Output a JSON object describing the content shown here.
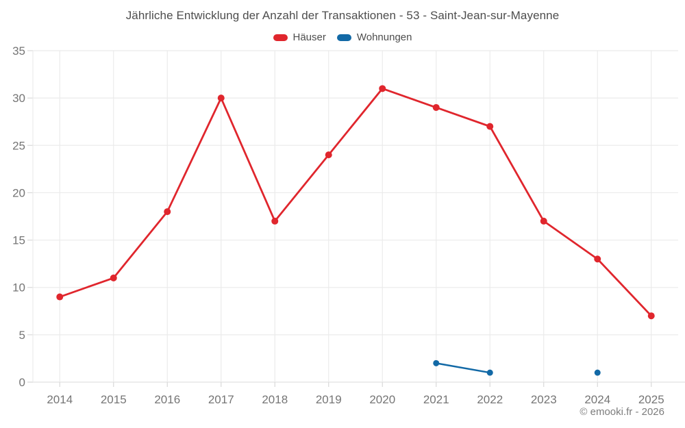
{
  "title": "Jährliche Entwicklung der Anzahl der Transaktionen - 53 - Saint-Jean-sur-Mayenne",
  "legend": [
    {
      "label": "Häuser",
      "color": "#e0262d"
    },
    {
      "label": "Wohnungen",
      "color": "#1269a6"
    }
  ],
  "footer": "© emooki.fr - 2026",
  "colors": {
    "series_hauser": "#e0262d",
    "series_wohnungen": "#1269a6",
    "grid": "#ebebeb",
    "axis_line": "#e0e0e0",
    "tick_mark": "#d9d9d9",
    "tick_label": "#757575",
    "title_text": "#4d4d4d",
    "footer_text": "#7c7c7c",
    "background": "#ffffff"
  },
  "chart_data": {
    "type": "line",
    "title": "Jährliche Entwicklung der Anzahl der Transaktionen - 53 - Saint-Jean-sur-Mayenne",
    "categories": [
      "2014",
      "2015",
      "2016",
      "2017",
      "2018",
      "2019",
      "2020",
      "2021",
      "2022",
      "2023",
      "2024",
      "2025"
    ],
    "series": [
      {
        "name": "Häuser",
        "color": "#e0262d",
        "values": [
          9,
          11,
          18,
          30,
          17,
          24,
          31,
          29,
          27,
          17,
          13,
          7
        ]
      },
      {
        "name": "Wohnungen",
        "color": "#1269a6",
        "values": [
          null,
          null,
          null,
          null,
          null,
          null,
          null,
          2,
          1,
          null,
          1,
          null
        ]
      }
    ],
    "xlabel": "",
    "ylabel": "",
    "ylim": [
      0,
      35
    ],
    "y_ticks": [
      0,
      5,
      10,
      15,
      20,
      25,
      30,
      35
    ],
    "grid": true,
    "legend_position": "top"
  }
}
